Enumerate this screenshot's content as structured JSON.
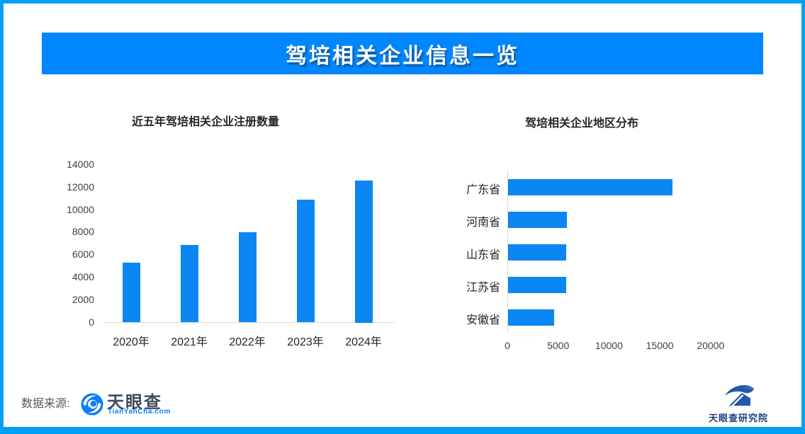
{
  "header": {
    "title": "驾培相关企业信息一览"
  },
  "chart_data": [
    {
      "type": "bar",
      "orientation": "vertical",
      "title": "近五年驾培相关企业注册数量",
      "categories": [
        "2020年",
        "2021年",
        "2022年",
        "2023年",
        "2024年"
      ],
      "values": [
        5300,
        6900,
        8000,
        10900,
        12600
      ],
      "xlabel": "",
      "ylabel": "",
      "ylim": [
        0,
        14000
      ],
      "yticks": [
        0,
        2000,
        4000,
        6000,
        8000,
        10000,
        12000,
        14000
      ],
      "grid": false,
      "legend": false,
      "bar_color": "#0b86f2"
    },
    {
      "type": "bar",
      "orientation": "horizontal",
      "title": "驾培相关企业地区分布",
      "categories": [
        "广东省",
        "河南省",
        "山东省",
        "江苏省",
        "安徽省"
      ],
      "values": [
        16200,
        5800,
        5750,
        5700,
        4500
      ],
      "xlabel": "",
      "ylabel": "",
      "xlim": [
        0,
        22000
      ],
      "xticks": [
        0,
        5000,
        10000,
        15000,
        20000
      ],
      "grid": false,
      "legend": false,
      "bar_color": "#0b86f2"
    }
  ],
  "footer": {
    "source_label": "数据来源:",
    "tianyancha": {
      "name": "天眼查",
      "domain": "TianYanCha.com"
    },
    "institute": {
      "name": "天眼查研究院"
    }
  },
  "colors": {
    "frame_border": "#00a1f4",
    "banner": "#0086ff",
    "bar": "#0b86f2",
    "axis_line": "#d9d9d9",
    "title_text": "#262626",
    "tick_text": "#404040",
    "source_text": "#595959",
    "tyc_text": "#3d4b5f",
    "tyc_blue": "#0b7df6",
    "institute_text": "#21417e"
  }
}
